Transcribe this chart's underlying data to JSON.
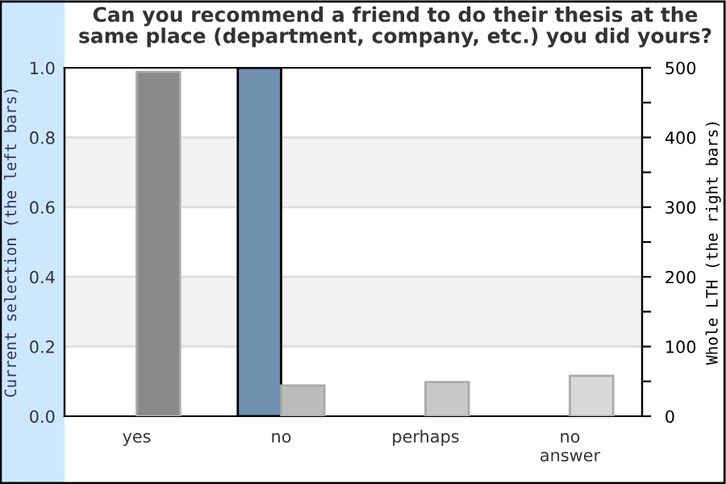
{
  "chart_data": {
    "type": "bar",
    "title": "Can you recommend a friend to do their thesis at the\nsame place (department, company, etc.) you did yours?",
    "ylabel": "Current selection (the left bars)",
    "y2label": "Whole LTH (the right bars)",
    "categories": [
      "yes",
      "no",
      "perhaps",
      "no\nanswer"
    ],
    "series": [
      {
        "axis": "y",
        "colors": [
          "#7090b0",
          "#7090b0",
          "#7090b0",
          "#7090b0"
        ],
        "values": [
          null,
          1.0,
          null,
          null
        ]
      },
      {
        "axis": "y2",
        "colors": [
          "#8a8a8a",
          "#bbbbbb",
          "#c8c8c8",
          "#d8d8d8"
        ],
        "values": [
          494,
          44,
          49,
          58
        ]
      }
    ],
    "ylim": [
      0,
      1.0
    ],
    "yticks": [
      {
        "value": 0,
        "label": "0.0"
      },
      0.2,
      0.4,
      0.6,
      0.8,
      {
        "value": 1,
        "label": "1.0"
      }
    ],
    "y2lim": [
      0,
      500
    ],
    "y2ticks": [
      0,
      {
        "value": 50,
        "label": null
      },
      100,
      {
        "value": 150,
        "label": null
      },
      200,
      {
        "value": 250,
        "label": null
      },
      300,
      {
        "value": 350,
        "label": null
      },
      400,
      {
        "value": 450,
        "label": null
      },
      500
    ],
    "bands": [
      {
        "axis": "y",
        "from": 0.2,
        "to": 0.4,
        "color": "#f2f2f2"
      },
      {
        "axis": "y",
        "from": 0.6,
        "to": 0.8,
        "color": "#f2f2f2"
      }
    ],
    "grid": "y",
    "legend": false
  }
}
